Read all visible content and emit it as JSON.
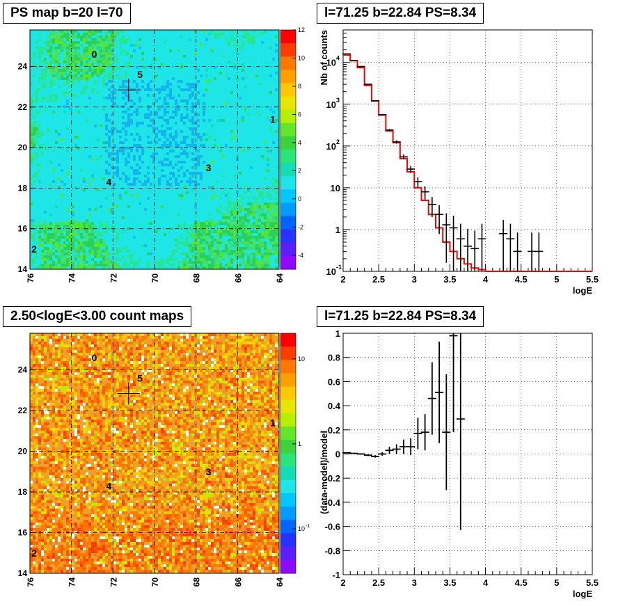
{
  "titles": {
    "ps_map": "PS map b=20 l=70",
    "spectrum": "l=71.25 b=22.84 PS=8.34",
    "count_map": "2.50<logE<3.00 count maps",
    "residual": "l=71.25 b=22.84 PS=8.34"
  },
  "colors": {
    "map_background": "#1ee6e6",
    "count_background": "#f0a028",
    "model_line": "#ff0000",
    "data_marker": "#000000"
  },
  "chart_data": [
    {
      "type": "heatmap",
      "title": "PS map b=20 l=70",
      "xlabel": "",
      "ylabel": "",
      "xlim": [
        76,
        64
      ],
      "ylim": [
        14,
        25.8
      ],
      "x_ticks": [
        "76",
        "74",
        "72",
        "70",
        "68",
        "66",
        "64"
      ],
      "y_ticks": [
        "14",
        "16",
        "18",
        "20",
        "22",
        "24"
      ],
      "grid": "dashed longitude/latitude graticule",
      "z_ticks": [
        "12",
        "10",
        "8",
        "6",
        "4",
        "2",
        "0",
        "-2",
        "-4"
      ],
      "zlim": [
        -5,
        12
      ],
      "sources": [
        {
          "label": "0",
          "l": 72.9,
          "b": 24.6
        },
        {
          "label": "5",
          "l": 70.7,
          "b": 23.6
        },
        {
          "label": "1",
          "l": 64.3,
          "b": 21.4
        },
        {
          "label": "3",
          "l": 67.4,
          "b": 19.0
        },
        {
          "label": "4",
          "l": 72.2,
          "b": 18.3
        },
        {
          "label": "2",
          "l": 75.8,
          "b": 15.0
        }
      ],
      "marker": {
        "l": 71.25,
        "b": 22.84
      }
    },
    {
      "type": "line",
      "title": "l=71.25 b=22.84 PS=8.34",
      "xlabel": "logE",
      "ylabel": "Nb of counts",
      "yscale": "log",
      "xlim": [
        2,
        5.5
      ],
      "ylim": [
        0.1,
        60000
      ],
      "x_ticks": [
        "2",
        "2.5",
        "3",
        "3.5",
        "4",
        "4.5",
        "5",
        "5.5"
      ],
      "y_ticks": [
        {
          "v": 0.1,
          "t": "10"
        },
        {
          "v": 1,
          "t": "1"
        },
        {
          "v": 10,
          "t": "10"
        },
        {
          "v": 100,
          "t": "10"
        },
        {
          "v": 1000,
          "t": "10"
        },
        {
          "v": 10000,
          "t": "10"
        }
      ],
      "y_tick_exponents": [
        "-1",
        "",
        "",
        "2",
        "3",
        "4"
      ],
      "model_step": {
        "edges": [
          2.0,
          2.1,
          2.2,
          2.3,
          2.4,
          2.5,
          2.6,
          2.7,
          2.8,
          2.9,
          3.0,
          3.1,
          3.2,
          3.3,
          3.4,
          3.5,
          3.6,
          3.7,
          3.8,
          3.9,
          4.0,
          5.5
        ],
        "values": [
          15000,
          11000,
          7500,
          2800,
          1200,
          550,
          230,
          120,
          50,
          24,
          10,
          5,
          2.3,
          1.1,
          0.5,
          0.3,
          0.2,
          0.15,
          0.12,
          0.11,
          0.1
        ]
      },
      "data_points": [
        {
          "x": 2.05,
          "y": 16000
        },
        {
          "x": 2.15,
          "y": 11000
        },
        {
          "x": 2.25,
          "y": 8000
        },
        {
          "x": 2.35,
          "y": 3000
        },
        {
          "x": 2.45,
          "y": 1200
        },
        {
          "x": 2.55,
          "y": 560
        },
        {
          "x": 2.65,
          "y": 240
        },
        {
          "x": 2.75,
          "y": 125
        },
        {
          "x": 2.85,
          "y": 55
        },
        {
          "x": 2.95,
          "y": 28
        },
        {
          "x": 3.05,
          "y": 14
        },
        {
          "x": 3.15,
          "y": 8
        },
        {
          "x": 3.25,
          "y": 4
        },
        {
          "x": 3.35,
          "y": 2.3
        },
        {
          "x": 3.45,
          "y": 1.3
        },
        {
          "x": 3.55,
          "y": 1.1
        },
        {
          "x": 3.65,
          "y": 0.6
        },
        {
          "x": 3.75,
          "y": 0.4
        },
        {
          "x": 3.85,
          "y": 0.35
        },
        {
          "x": 3.95,
          "y": 0.6
        },
        {
          "x": 4.25,
          "y": 0.8
        },
        {
          "x": 4.35,
          "y": 0.6
        },
        {
          "x": 4.45,
          "y": 0.3
        },
        {
          "x": 4.65,
          "y": 0.3
        },
        {
          "x": 4.75,
          "y": 0.3
        }
      ]
    },
    {
      "type": "heatmap",
      "title": "2.50<logE<3.00 count maps",
      "xlabel": "",
      "ylabel": "",
      "xlim": [
        76,
        64
      ],
      "ylim": [
        14,
        25.8
      ],
      "x_ticks": [
        "76",
        "74",
        "72",
        "70",
        "68",
        "66",
        "64"
      ],
      "y_ticks": [
        "14",
        "16",
        "18",
        "20",
        "22",
        "24"
      ],
      "zscale": "log",
      "z_ticks": [
        {
          "v": 10,
          "t": "10"
        },
        {
          "v": 1,
          "t": "1"
        },
        {
          "v": 0.1,
          "t": "10"
        }
      ],
      "z_tick_exponents": [
        "",
        "",
        "-1"
      ],
      "sources": [
        {
          "label": "0",
          "l": 72.9,
          "b": 24.6
        },
        {
          "label": "5",
          "l": 70.7,
          "b": 23.6
        },
        {
          "label": "1",
          "l": 64.3,
          "b": 21.4
        },
        {
          "label": "3",
          "l": 67.4,
          "b": 19.0
        },
        {
          "label": "4",
          "l": 72.2,
          "b": 18.3
        },
        {
          "label": "2",
          "l": 75.8,
          "b": 15.0
        }
      ],
      "marker": {
        "l": 71.25,
        "b": 22.84
      }
    },
    {
      "type": "scatter",
      "title": "l=71.25 b=22.84 PS=8.34",
      "xlabel": "logE",
      "ylabel": "(data-model)/model",
      "xlim": [
        2,
        5.5
      ],
      "ylim": [
        -1,
        1
      ],
      "x_ticks": [
        "2",
        "2.5",
        "3",
        "3.5",
        "4",
        "4.5",
        "5",
        "5.5"
      ],
      "y_ticks": [
        "-1",
        "-0.8",
        "-0.6",
        "-0.4",
        "-0.2",
        "0",
        "0.2",
        "0.4",
        "0.6",
        "0.8",
        "1"
      ],
      "points": [
        {
          "x": 2.05,
          "y": 0.01,
          "err": 0.005
        },
        {
          "x": 2.15,
          "y": 0.005,
          "err": 0.005
        },
        {
          "x": 2.25,
          "y": 0.0,
          "err": 0.006
        },
        {
          "x": 2.35,
          "y": -0.01,
          "err": 0.008
        },
        {
          "x": 2.45,
          "y": -0.02,
          "err": 0.01
        },
        {
          "x": 2.55,
          "y": 0.0,
          "err": 0.015
        },
        {
          "x": 2.65,
          "y": 0.03,
          "err": 0.03
        },
        {
          "x": 2.75,
          "y": 0.04,
          "err": 0.04
        },
        {
          "x": 2.85,
          "y": 0.06,
          "err": 0.06
        },
        {
          "x": 2.95,
          "y": 0.06,
          "err": 0.07
        },
        {
          "x": 3.05,
          "y": 0.17,
          "err": 0.13
        },
        {
          "x": 3.15,
          "y": 0.18,
          "err": 0.15
        },
        {
          "x": 3.25,
          "y": 0.46,
          "err": 0.3
        },
        {
          "x": 3.35,
          "y": 0.51,
          "err": 0.42
        },
        {
          "x": 3.45,
          "y": 0.18,
          "err": 0.48
        },
        {
          "x": 3.55,
          "y": 0.98,
          "err": 0.8
        },
        {
          "x": 3.65,
          "y": 0.29,
          "err": 0.92
        }
      ]
    }
  ]
}
